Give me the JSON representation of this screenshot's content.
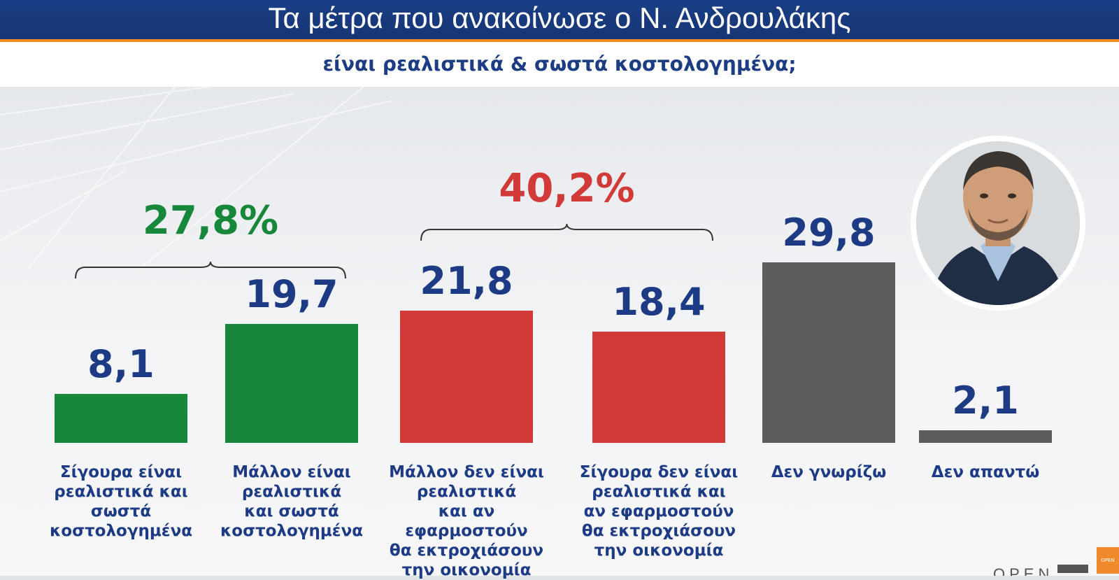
{
  "header": {
    "title": "Τα μέτρα που ανακοίνωσε ο Ν. Ανδρουλάκης",
    "subtitle": "είναι ρεαλιστικά & σωστά κοστολογημένα;"
  },
  "colors": {
    "green": "#17873a",
    "red": "#d23a37",
    "grey": "#5d5d5d",
    "value_text": "#1d3b85",
    "header_bg": "#1b3f86",
    "accent_orange": "#f28a1e"
  },
  "groups": [
    {
      "label": "27,8%",
      "color": "#17873a"
    },
    {
      "label": "40,2%",
      "color": "#d23a37"
    }
  ],
  "chart_data": {
    "type": "bar",
    "title": "Τα μέτρα που ανακοίνωσε ο Ν. Ανδρουλάκης",
    "subtitle": "είναι ρεαλιστικά & σωστά κοστολογημένα;",
    "categories": [
      "Σίγουρα είναι ρεαλιστικά και σωστά κοστολογημένα",
      "Μάλλον είναι ρεαλιστικά και σωστά κοστολογημένα",
      "Μάλλον δεν είναι ρεαλιστικά και αν εφαρμοστούν θα εκτροχιάσουν την οικονομία",
      "Σίγουρα δεν είναι ρεαλιστικά και αν εφαρμοστούν θα εκτροχιάσουν την οικονομία",
      "Δεν γνωρίζω",
      "Δεν απαντώ"
    ],
    "label_lines": [
      [
        "Σίγουρα είναι",
        "ρεαλιστικά και",
        "σωστά",
        "κοστολογημένα"
      ],
      [
        "Μάλλον είναι",
        "ρεαλιστικά",
        "και σωστά",
        "κοστολογημένα"
      ],
      [
        "Μάλλον δεν είναι",
        "ρεαλιστικά",
        "και αν",
        "εφαρμοστούν",
        "θα εκτροχιάσουν",
        "την οικονομία"
      ],
      [
        "Σίγουρα δεν είναι",
        "ρεαλιστικά και",
        "αν εφαρμοστούν",
        "θα εκτροχιάσουν",
        "την οικονομία"
      ],
      [
        "Δεν γνωρίζω"
      ],
      [
        "Δεν απαντώ"
      ]
    ],
    "values": [
      8.1,
      19.7,
      21.8,
      18.4,
      29.8,
      2.1
    ],
    "value_labels": [
      "8,1",
      "19,7",
      "21,8",
      "18,4",
      "29,8",
      "2,1"
    ],
    "bar_colors": [
      "#17873a",
      "#17873a",
      "#d23a37",
      "#d23a37",
      "#5d5d5d",
      "#5d5d5d"
    ],
    "group_totals": [
      {
        "label": "27,8%",
        "members": [
          0,
          1
        ],
        "value": 27.8
      },
      {
        "label": "40,2%",
        "members": [
          2,
          3
        ],
        "value": 40.2
      }
    ],
    "ylim": [
      0,
      30
    ],
    "grid": false,
    "legend": "none"
  },
  "branding": {
    "logo_text": "OPEN",
    "logo_small": "OPEN"
  }
}
